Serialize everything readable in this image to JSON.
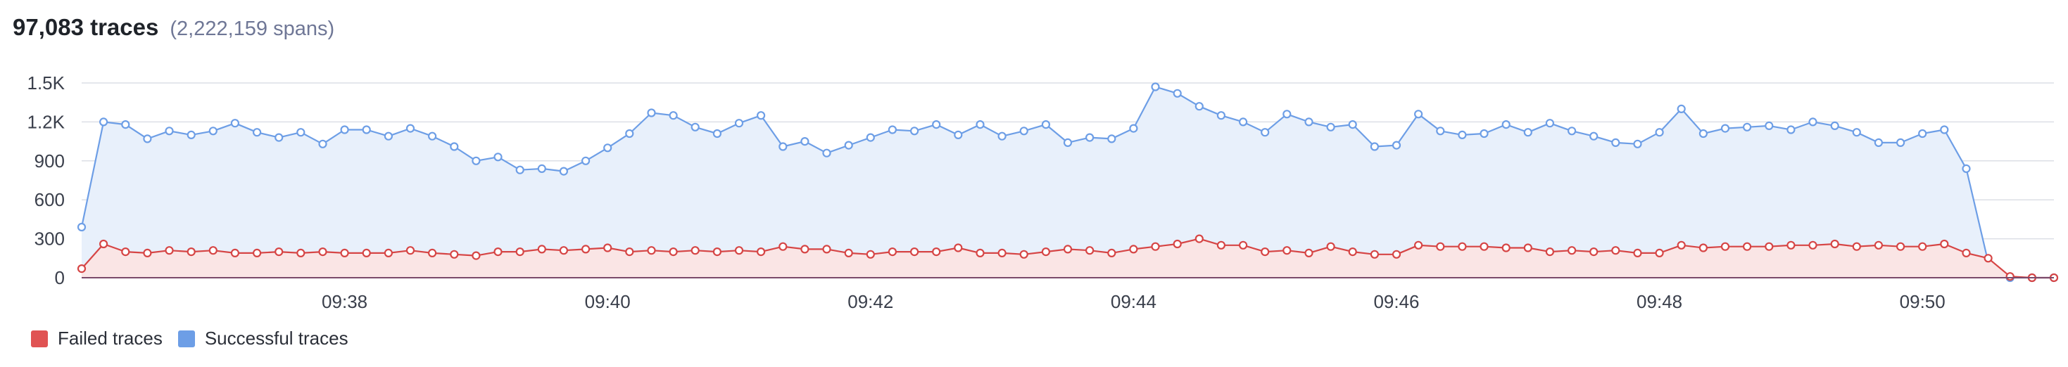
{
  "header": {
    "title": "97,083 traces",
    "subtitle": "(2,222,159 spans)"
  },
  "colors": {
    "success_line": "#6d9ee6",
    "success_fill": "#e8f0fb",
    "failed_line": "#d64545",
    "failed_fill": "#fae5e5",
    "grid": "#dcdfe6",
    "axis": "#7a4a6a"
  },
  "legend": [
    {
      "label": "Failed traces",
      "color": "#e05353"
    },
    {
      "label": "Successful traces",
      "color": "#6d9ee6"
    }
  ],
  "chart_data": {
    "type": "area",
    "title": "",
    "xlabel": "",
    "ylabel": "",
    "x_start": "09:36:00",
    "x_end": "09:51:00",
    "x_ticks": [
      "09:38",
      "09:40",
      "09:42",
      "09:44",
      "09:46",
      "09:48",
      "09:50"
    ],
    "y_ticks": [
      "0",
      "300",
      "600",
      "900",
      "1.2K",
      "1.5K"
    ],
    "ylim": [
      0,
      1500
    ],
    "grid": true,
    "legend_position": "bottom-left",
    "x": [
      "09:36:00",
      "09:36:10",
      "09:36:20",
      "09:36:30",
      "09:36:40",
      "09:36:50",
      "09:37:00",
      "09:37:10",
      "09:37:20",
      "09:37:30",
      "09:37:40",
      "09:37:50",
      "09:38:00",
      "09:38:10",
      "09:38:20",
      "09:38:30",
      "09:38:40",
      "09:38:50",
      "09:39:00",
      "09:39:10",
      "09:39:20",
      "09:39:30",
      "09:39:40",
      "09:39:50",
      "09:40:00",
      "09:40:10",
      "09:40:20",
      "09:40:30",
      "09:40:40",
      "09:40:50",
      "09:41:00",
      "09:41:10",
      "09:41:20",
      "09:41:30",
      "09:41:40",
      "09:41:50",
      "09:42:00",
      "09:42:10",
      "09:42:20",
      "09:42:30",
      "09:42:40",
      "09:42:50",
      "09:43:00",
      "09:43:10",
      "09:43:20",
      "09:43:30",
      "09:43:40",
      "09:43:50",
      "09:44:00",
      "09:44:10",
      "09:44:20",
      "09:44:30",
      "09:44:40",
      "09:44:50",
      "09:45:00",
      "09:45:10",
      "09:45:20",
      "09:45:30",
      "09:45:40",
      "09:45:50",
      "09:46:00",
      "09:46:10",
      "09:46:20",
      "09:46:30",
      "09:46:40",
      "09:46:50",
      "09:47:00",
      "09:47:10",
      "09:47:20",
      "09:47:30",
      "09:47:40",
      "09:47:50",
      "09:48:00",
      "09:48:10",
      "09:48:20",
      "09:48:30",
      "09:48:40",
      "09:48:50",
      "09:49:00",
      "09:49:10",
      "09:49:20",
      "09:49:30",
      "09:49:40",
      "09:49:50",
      "09:50:00",
      "09:50:10",
      "09:50:20",
      "09:50:30",
      "09:50:40",
      "09:50:50",
      "09:51:00"
    ],
    "series": [
      {
        "name": "Successful traces",
        "values": [
          390,
          1200,
          1180,
          1070,
          1130,
          1100,
          1130,
          1190,
          1120,
          1080,
          1120,
          1030,
          1140,
          1140,
          1090,
          1150,
          1090,
          1010,
          900,
          930,
          830,
          840,
          820,
          900,
          1000,
          1110,
          1270,
          1250,
          1160,
          1110,
          1190,
          1250,
          1010,
          1050,
          960,
          1020,
          1080,
          1140,
          1130,
          1180,
          1100,
          1180,
          1090,
          1130,
          1180,
          1040,
          1080,
          1070,
          1150,
          1470,
          1420,
          1320,
          1250,
          1200,
          1120,
          1260,
          1200,
          1160,
          1180,
          1010,
          1020,
          1260,
          1130,
          1100,
          1110,
          1180,
          1120,
          1190,
          1130,
          1090,
          1040,
          1030,
          1120,
          1300,
          1110,
          1150,
          1160,
          1170,
          1140,
          1200,
          1170,
          1120,
          1040,
          1040,
          1110,
          1140,
          840,
          120,
          0,
          0,
          0
        ]
      },
      {
        "name": "Failed traces",
        "values": [
          70,
          260,
          200,
          190,
          210,
          200,
          210,
          190,
          190,
          200,
          190,
          200,
          190,
          190,
          190,
          210,
          190,
          180,
          170,
          200,
          200,
          220,
          210,
          220,
          230,
          200,
          210,
          200,
          210,
          200,
          210,
          200,
          240,
          220,
          220,
          190,
          180,
          200,
          200,
          200,
          230,
          190,
          190,
          180,
          200,
          220,
          210,
          190,
          220,
          240,
          260,
          300,
          250,
          250,
          200,
          210,
          190,
          240,
          200,
          180,
          180,
          250,
          240,
          240,
          240,
          230,
          230,
          200,
          210,
          200,
          210,
          190,
          190,
          250,
          230,
          240,
          240,
          240,
          250,
          250,
          260,
          240,
          250,
          240,
          240,
          260,
          190,
          150,
          10,
          0,
          0
        ]
      }
    ]
  }
}
